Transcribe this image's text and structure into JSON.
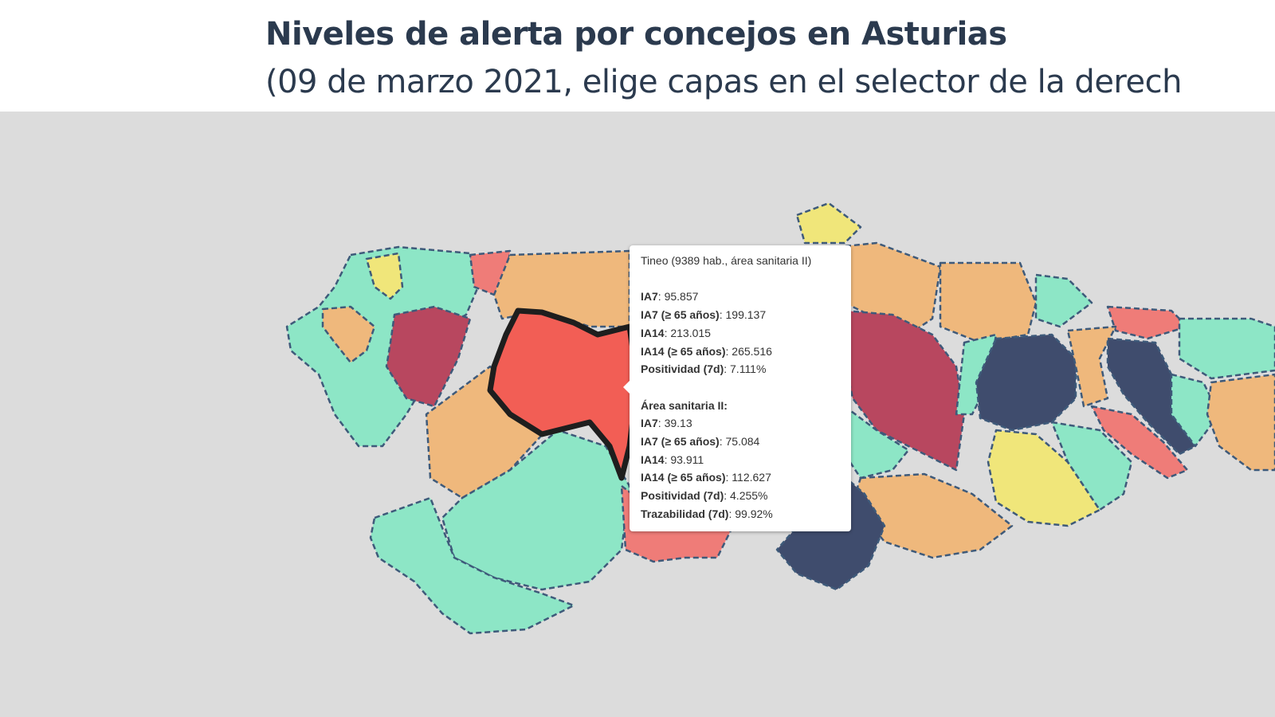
{
  "header": {
    "title": "Niveles de alerta por concejos en Asturias",
    "subtitle": "(09 de marzo 2021, elige capas en el selector de la derech"
  },
  "map": {
    "colors": {
      "background": "#dcdcdc",
      "mint": "#8de6c6",
      "orange": "#efb87c",
      "dark_red": "#b8475f",
      "salmon": "#ef7c78",
      "red": "#f25e55",
      "navy": "#3f4c6d",
      "yellow": "#f0e67a"
    },
    "selected_region": "Tineo"
  },
  "tooltip": {
    "heading": "Tineo (9389 hab., área sanitaria II)",
    "concejo": [
      {
        "label": "IA7",
        "value": "95.857"
      },
      {
        "label": "IA7 (≥ 65 años)",
        "value": "199.137"
      },
      {
        "label": "IA14",
        "value": "213.015"
      },
      {
        "label": "IA14 (≥ 65 años)",
        "value": "265.516"
      },
      {
        "label": "Positividad (7d)",
        "value": "7.111%"
      }
    ],
    "area_heading": "Área sanitaria II:",
    "area": [
      {
        "label": "IA7",
        "value": "39.13"
      },
      {
        "label": "IA7 (≥ 65 años)",
        "value": "75.084"
      },
      {
        "label": "IA14",
        "value": "93.911"
      },
      {
        "label": "IA14 (≥ 65 años)",
        "value": "112.627"
      },
      {
        "label": "Positividad (7d)",
        "value": "4.255%"
      },
      {
        "label": "Trazabilidad (7d)",
        "value": "99.92%"
      }
    ]
  }
}
